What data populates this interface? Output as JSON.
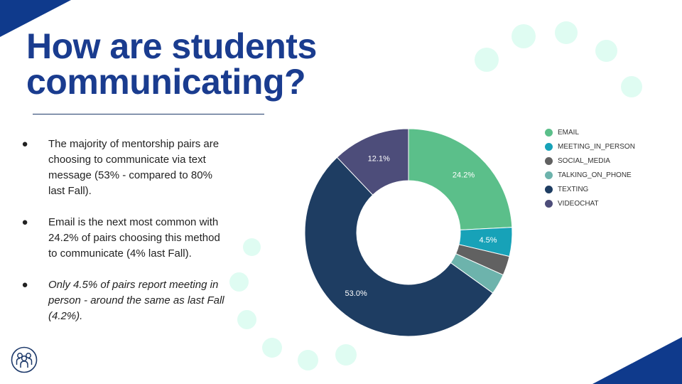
{
  "slide": {
    "title": "How are students communicating?",
    "bullets": [
      {
        "text": "The majority of mentorship pairs are choosing to communicate via text message (53% - compared to 80% last Fall).",
        "italic": false
      },
      {
        "text": "Email is the next most common with 24.2% of pairs choosing this method to communicate (4% last Fall).",
        "italic": false
      },
      {
        "text": "Only 4.5% of pairs report meeting in person - around the same as last Fall (4.2%).",
        "italic": true
      }
    ],
    "bullet_glyph": "●",
    "logo_icon": "people-group-icon",
    "colors": {
      "title": "#1a3c8f",
      "accent_dark": "#0f3a8c",
      "deco": "#dffcf2"
    }
  },
  "chart_data": {
    "type": "pie",
    "variant": "donut",
    "categories": [
      "EMAIL",
      "MEETING_IN_PERSON",
      "SOCIAL_MEDIA",
      "TALKING_ON_PHONE",
      "TEXTING",
      "VIDEOCHAT"
    ],
    "values": [
      24.2,
      4.5,
      3.0,
      3.2,
      53.0,
      12.1
    ],
    "labels": [
      "24.2%",
      "4.5%",
      "",
      "",
      "53.0%",
      "12.1%"
    ],
    "colors": [
      "#5bbf8a",
      "#17a2b8",
      "#616161",
      "#6db3ac",
      "#1e3d62",
      "#4d4d7a"
    ],
    "legend": "right"
  }
}
